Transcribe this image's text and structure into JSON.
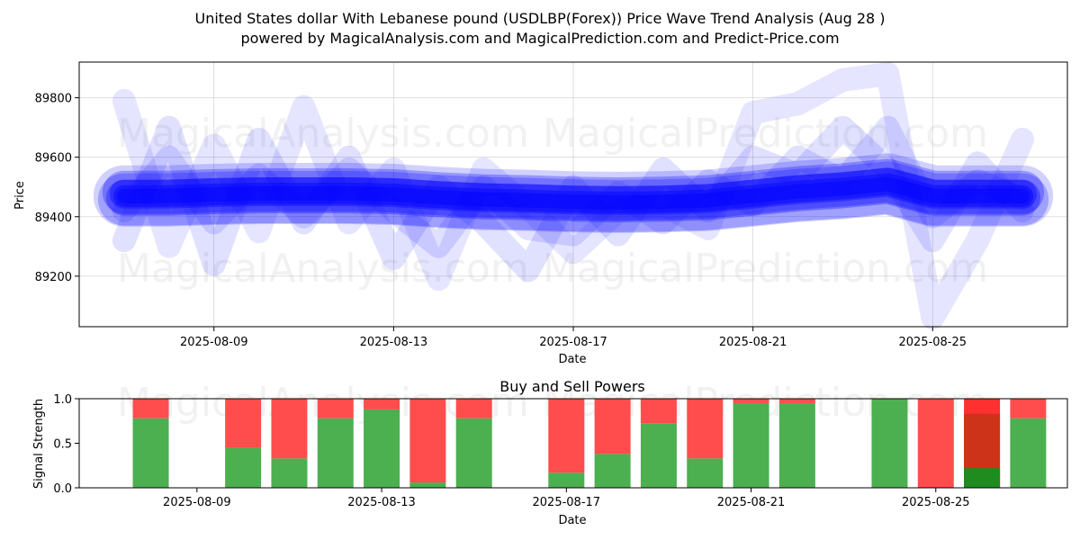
{
  "title_line1": "United States dollar With Lebanese pound (USDLBP(Forex)) Price Wave Trend Analysis (Aug 28 )",
  "title_line2": "powered by MagicalAnalysis.com and MagicalPrediction.com and Predict-Price.com",
  "watermarks": [
    "MagicalAnalysis.com",
    "MagicalPrediction.com"
  ],
  "colors": {
    "wave": "#0000ff",
    "buy": "#4caf50",
    "sell": "#ff4d4d",
    "buy_dark": "#1e8c1e",
    "sell_dark": "#ff1a1a",
    "overlap": "#cc3318"
  },
  "chart_data": [
    {
      "type": "line",
      "name": "price-wave",
      "xlabel": "Date",
      "ylabel": "Price",
      "x_ticks": [
        "2025-08-09",
        "2025-08-13",
        "2025-08-17",
        "2025-08-21",
        "2025-08-25"
      ],
      "y_ticks": [
        89200,
        89400,
        89600,
        89800
      ],
      "xlim": [
        "2025-08-06",
        "2025-08-28"
      ],
      "ylim": [
        89030,
        89920
      ],
      "grid": true,
      "dates": [
        "2025-08-07",
        "2025-08-08",
        "2025-08-09",
        "2025-08-10",
        "2025-08-11",
        "2025-08-12",
        "2025-08-13",
        "2025-08-14",
        "2025-08-15",
        "2025-08-16",
        "2025-08-17",
        "2025-08-18",
        "2025-08-19",
        "2025-08-20",
        "2025-08-21",
        "2025-08-22",
        "2025-08-23",
        "2025-08-24",
        "2025-08-25",
        "2025-08-26",
        "2025-08-27"
      ],
      "mean_band": [
        89470,
        89470,
        89475,
        89478,
        89478,
        89478,
        89475,
        89465,
        89458,
        89455,
        89450,
        89448,
        89450,
        89455,
        89470,
        89485,
        89495,
        89510,
        89470,
        89470,
        89470
      ],
      "zigzags": [
        {
          "x": [
            "2025-08-07",
            "2025-08-08",
            "2025-08-09",
            "2025-08-10",
            "2025-08-11",
            "2025-08-12",
            "2025-08-13",
            "2025-08-14",
            "2025-08-15",
            "2025-08-16",
            "2025-08-17",
            "2025-08-18",
            "2025-08-19",
            "2025-08-20",
            "2025-08-21",
            "2025-08-22",
            "2025-08-23",
            "2025-08-24",
            "2025-08-25",
            "2025-08-26",
            "2025-08-27"
          ],
          "y": [
            89790,
            89300,
            89640,
            89350,
            89770,
            89380,
            89560,
            89190,
            89560,
            89430,
            89280,
            89420,
            89440,
            89360,
            89750,
            89780,
            89860,
            89880,
            89060,
            89320,
            89660
          ]
        },
        {
          "x": [
            "2025-08-07",
            "2025-08-08",
            "2025-08-09",
            "2025-08-10",
            "2025-08-11",
            "2025-08-12",
            "2025-08-13",
            "2025-08-14",
            "2025-08-15",
            "2025-08-16",
            "2025-08-17",
            "2025-08-18",
            "2025-08-19",
            "2025-08-20",
            "2025-08-21",
            "2025-08-22",
            "2025-08-23",
            "2025-08-24",
            "2025-08-25",
            "2025-08-26",
            "2025-08-27"
          ],
          "y": [
            89320,
            89700,
            89240,
            89660,
            89380,
            89600,
            89260,
            89500,
            89380,
            89220,
            89500,
            89340,
            89560,
            89420,
            89600,
            89540,
            89700,
            89560,
            89320,
            89580,
            89420
          ]
        },
        {
          "x": [
            "2025-08-07",
            "2025-08-08",
            "2025-08-09",
            "2025-08-10",
            "2025-08-11",
            "2025-08-12",
            "2025-08-13",
            "2025-08-14",
            "2025-08-15",
            "2025-08-16",
            "2025-08-17",
            "2025-08-18",
            "2025-08-19",
            "2025-08-20",
            "2025-08-21",
            "2025-08-22",
            "2025-08-23",
            "2025-08-24",
            "2025-08-25",
            "2025-08-26",
            "2025-08-27"
          ],
          "y": [
            89420,
            89600,
            89380,
            89540,
            89400,
            89560,
            89420,
            89300,
            89500,
            89360,
            89340,
            89480,
            89380,
            89520,
            89440,
            89600,
            89520,
            89700,
            89400,
            89520,
            89460
          ]
        }
      ]
    },
    {
      "type": "bar",
      "name": "buy-sell-powers",
      "title": "Buy and Sell Powers",
      "xlabel": "Date",
      "ylabel": "Signal Strength",
      "x_ticks": [
        "2025-08-09",
        "2025-08-13",
        "2025-08-17",
        "2025-08-21",
        "2025-08-25"
      ],
      "y_ticks": [
        "0.0",
        "0.5",
        "1.0"
      ],
      "ylim": [
        0,
        1
      ],
      "dates": [
        "2025-08-08",
        "2025-08-10",
        "2025-08-11",
        "2025-08-12",
        "2025-08-13",
        "2025-08-14",
        "2025-08-15",
        "2025-08-17",
        "2025-08-18",
        "2025-08-19",
        "2025-08-20",
        "2025-08-21",
        "2025-08-22",
        "2025-08-24",
        "2025-08-25",
        "2025-08-26",
        "2025-08-27"
      ],
      "buy": [
        0.78,
        0.45,
        0.33,
        0.78,
        0.88,
        0.06,
        0.78,
        0.17,
        0.38,
        0.72,
        0.33,
        0.95,
        0.95,
        1.0,
        0.0,
        0.22,
        0.78
      ],
      "sell": [
        0.22,
        0.55,
        0.67,
        0.22,
        0.12,
        0.94,
        0.22,
        0.83,
        0.62,
        0.28,
        0.67,
        0.05,
        0.05,
        0.0,
        1.0,
        0.78,
        0.22
      ],
      "overlap_day": "2025-08-26"
    }
  ]
}
